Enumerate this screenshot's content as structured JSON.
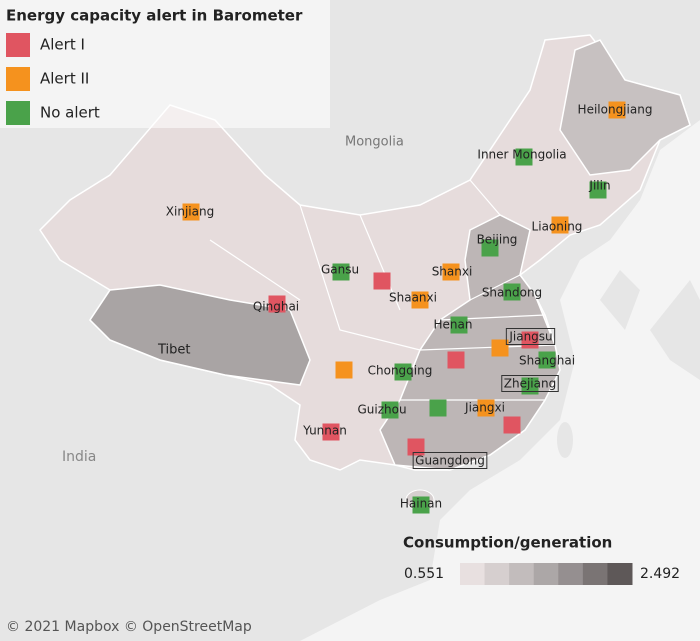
{
  "legend": {
    "title": "Energy capacity alert in Barometer",
    "items": [
      {
        "label": "Alert I",
        "color": "#e05561"
      },
      {
        "label": "Alert II",
        "color": "#f5921e"
      },
      {
        "label": "No alert",
        "color": "#4aa24a"
      }
    ]
  },
  "map_labels": [
    "Mongolia",
    "India",
    "Tibet"
  ],
  "regions": [
    {
      "label": "Heilongjiang",
      "alert": "Alert II"
    },
    {
      "label": "Inner Mongolia",
      "alert": "No alert"
    },
    {
      "label": "Jilin",
      "alert": "No alert"
    },
    {
      "label": "Xinjiang",
      "alert": "Alert II"
    },
    {
      "label": "Liaoning",
      "alert": "Alert II"
    },
    {
      "label": "Beijing",
      "alert": "No alert"
    },
    {
      "label": "Gansu",
      "alert": "No alert"
    },
    {
      "alert": "Alert I"
    },
    {
      "label": "Shanxi",
      "alert": "Alert II"
    },
    {
      "label": "Qinghai",
      "alert": "Alert I"
    },
    {
      "label": "Shaanxi",
      "alert": "Alert II"
    },
    {
      "label": "Shandong",
      "alert": "No alert"
    },
    {
      "label": "Henan",
      "alert": "No alert"
    },
    {
      "label": "Jiangsu",
      "alert": "Alert I",
      "boxed": true
    },
    {
      "alert": "Alert II"
    },
    {
      "alert": "Alert I"
    },
    {
      "label": "Shanghai",
      "alert": "No alert"
    },
    {
      "alert": "Alert II"
    },
    {
      "label": "Chongqing",
      "alert": "No alert"
    },
    {
      "label": "Zhejiang",
      "alert": "No alert",
      "boxed": true
    },
    {
      "label": "Guizhou",
      "alert": "No alert"
    },
    {
      "alert": "No alert"
    },
    {
      "label": "Jiangxi",
      "alert": "Alert II"
    },
    {
      "alert": "Alert I"
    },
    {
      "label": "Yunnan",
      "alert": "Alert I"
    },
    {
      "label": "Guangdong",
      "alert": "Alert I",
      "boxed": true
    },
    {
      "label": "Hainan",
      "alert": "No alert"
    }
  ],
  "color_scale": {
    "title": "Consumption/generation",
    "min": 0.551,
    "max": 2.492,
    "colors": [
      "#e8e0e0",
      "#d6cfcf",
      "#c2bcbc",
      "#aca7a7",
      "#958f90",
      "#7a7474",
      "#5e5858"
    ]
  },
  "attribution": "© 2021 Mapbox © OpenStreetMap"
}
